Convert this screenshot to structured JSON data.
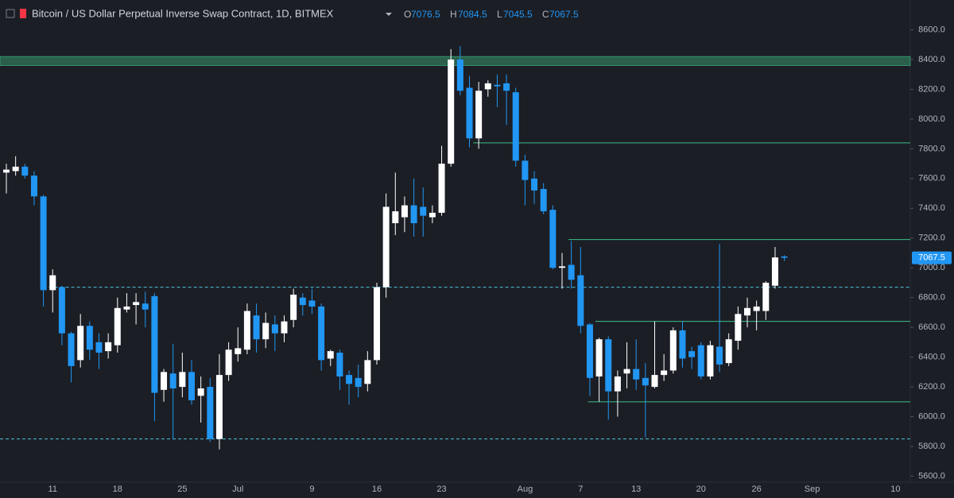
{
  "chart_data": {
    "type": "candlestick",
    "title": "Bitcoin / US Dollar Perpetual Inverse Swap Contract, 1D, BITMEX",
    "ohlc_keys": [
      "O",
      "H",
      "L",
      "C"
    ],
    "up_color": "#ffffff",
    "down_color": "#2196f3",
    "categories": [
      null,
      null,
      null,
      null,
      null,
      "11",
      null,
      null,
      null,
      null,
      null,
      null,
      "18",
      null,
      null,
      null,
      null,
      null,
      null,
      "25",
      null,
      null,
      null,
      null,
      null,
      "Jul",
      null,
      null,
      null,
      null,
      null,
      null,
      null,
      "9",
      null,
      null,
      null,
      null,
      null,
      null,
      "16",
      null,
      null,
      null,
      null,
      null,
      null,
      "23",
      null,
      null,
      null,
      null,
      null,
      null,
      null,
      null,
      "Aug",
      null,
      null,
      null,
      null,
      null,
      "7",
      null,
      null,
      null,
      null,
      null,
      "13",
      null,
      null,
      null,
      null,
      null,
      null,
      "20",
      null,
      null,
      null,
      null,
      null,
      "26",
      null,
      null,
      null,
      null,
      null,
      "Sep",
      null,
      null,
      null,
      null,
      null,
      null,
      null,
      null,
      "10"
    ],
    "open": [
      7640,
      7650,
      7680,
      7620,
      7480,
      6850,
      6870,
      6560,
      6380,
      6610,
      6500,
      6440,
      6480,
      6720,
      6750,
      6760,
      6810,
      6180,
      6290,
      6200,
      6300,
      6140,
      6200,
      5850,
      6280,
      6420,
      6450,
      6680,
      6520,
      6620,
      6560,
      6650,
      6800,
      6780,
      6740,
      6390,
      6430,
      6280,
      6260,
      6220,
      6380,
      6870,
      7300,
      7340,
      7420,
      7410,
      7340,
      7370,
      7700,
      8400,
      8210,
      7870,
      8200,
      8230,
      8240,
      8180,
      7720,
      7600,
      7530,
      7390,
      7000,
      7020,
      6950,
      6620,
      6270,
      6520,
      6170,
      6290,
      6320,
      6260,
      6200,
      6280,
      6310,
      6580,
      6440,
      6480,
      6270,
      6470,
      6360,
      6510,
      6680,
      6710,
      6710,
      6880,
      7076.5,
      null,
      null,
      null,
      null,
      null,
      null,
      null,
      null,
      null,
      null,
      null,
      null
    ],
    "high": [
      7700,
      7750,
      7700,
      7650,
      7490,
      6990,
      6880,
      6570,
      6690,
      6640,
      6560,
      6560,
      6800,
      6830,
      6830,
      6840,
      6830,
      6320,
      6490,
      6430,
      6380,
      6270,
      6260,
      6420,
      6500,
      6600,
      6760,
      6760,
      6700,
      6680,
      6680,
      6860,
      6830,
      6860,
      6760,
      6450,
      6450,
      6310,
      6350,
      6440,
      6900,
      7500,
      7640,
      7480,
      7600,
      7540,
      7420,
      7820,
      8470,
      8490,
      8290,
      8250,
      8260,
      8300,
      8300,
      8210,
      7760,
      7650,
      7570,
      7420,
      7100,
      7180,
      7140,
      6630,
      6530,
      6540,
      6310,
      6500,
      6520,
      6360,
      6640,
      6420,
      6600,
      6640,
      6470,
      6500,
      6510,
      7160,
      6560,
      6740,
      6800,
      6780,
      6910,
      7140,
      7084.5,
      null,
      null,
      null,
      null,
      null,
      null,
      null,
      null,
      null,
      null,
      null,
      null
    ],
    "low": [
      7500,
      7620,
      7600,
      7420,
      6740,
      6700,
      6480,
      6230,
      6330,
      6380,
      6320,
      6390,
      6430,
      6700,
      6620,
      6600,
      5970,
      6100,
      5850,
      6130,
      6080,
      5960,
      5830,
      5780,
      6240,
      6370,
      6420,
      6430,
      6460,
      6440,
      6500,
      6600,
      6680,
      6690,
      6310,
      6340,
      6180,
      6080,
      6130,
      6170,
      6350,
      6800,
      7220,
      7240,
      7210,
      7210,
      7300,
      7350,
      7680,
      8160,
      7810,
      7800,
      8150,
      8080,
      7960,
      7680,
      7420,
      7430,
      7360,
      6990,
      6860,
      6860,
      6560,
      6140,
      6100,
      5980,
      6000,
      6190,
      6180,
      5860,
      6190,
      6240,
      6290,
      6330,
      6320,
      6250,
      6250,
      6300,
      6340,
      6450,
      6600,
      6580,
      6650,
      6860,
      7045.5,
      null,
      null,
      null,
      null,
      null,
      null,
      null,
      null,
      null,
      null,
      null,
      null
    ],
    "close": [
      7660,
      7680,
      7620,
      7480,
      6850,
      6950,
      6560,
      6340,
      6610,
      6450,
      6430,
      6500,
      6730,
      6740,
      6770,
      6720,
      6160,
      6300,
      6190,
      6300,
      6110,
      6190,
      5850,
      6280,
      6450,
      6460,
      6710,
      6520,
      6630,
      6560,
      6640,
      6820,
      6750,
      6740,
      6380,
      6440,
      6270,
      6220,
      6200,
      6380,
      6870,
      7410,
      7380,
      7420,
      7300,
      7350,
      7370,
      7700,
      8400,
      8190,
      7870,
      8190,
      8240,
      8220,
      8190,
      7720,
      7590,
      7520,
      7380,
      7000,
      7010,
      6920,
      6610,
      6260,
      6520,
      6170,
      6270,
      6320,
      6250,
      6210,
      6280,
      6310,
      6580,
      6390,
      6400,
      6270,
      6480,
      6350,
      6520,
      6690,
      6730,
      6740,
      6900,
      7070,
      7067.5,
      null,
      null,
      null,
      null,
      null,
      null,
      null,
      null,
      null,
      null,
      null,
      null
    ],
    "ylim": [
      5560,
      8800
    ],
    "yticks": [
      {
        "value": 5600,
        "label": "5600.0"
      },
      {
        "value": 5800,
        "label": "5800.0"
      },
      {
        "value": 6000,
        "label": "6000.0"
      },
      {
        "value": 6200,
        "label": "6200.0"
      },
      {
        "value": 6400,
        "label": "6400.0"
      },
      {
        "value": 6600,
        "label": "6600.0"
      },
      {
        "value": 6800,
        "label": "6800.0"
      },
      {
        "value": 7000,
        "label": "7000.0"
      },
      {
        "value": 7200,
        "label": "7200.0"
      },
      {
        "value": 7400,
        "label": "7400.0"
      },
      {
        "value": 7600,
        "label": "7600.0"
      },
      {
        "value": 7800,
        "label": "7800.0"
      },
      {
        "value": 8000,
        "label": "8000.0"
      },
      {
        "value": 8200,
        "label": "8200.0"
      },
      {
        "value": 8400,
        "label": "8400.0"
      },
      {
        "value": 8600,
        "label": "8600.0"
      }
    ],
    "zone": {
      "from": 8360,
      "to": 8420,
      "color": "#2e6b52"
    },
    "levels": [
      {
        "value": 7840,
        "color": "#3fbf8a",
        "style": "solid"
      },
      {
        "value": 7190,
        "color": "#3fbf8a",
        "style": "solid"
      },
      {
        "value": 6640,
        "color": "#3fbf8a",
        "style": "solid"
      },
      {
        "value": 6100,
        "color": "#3fbf8a",
        "style": "solid"
      },
      {
        "value": 6870,
        "color": "#4fc3e0",
        "style": "dashed"
      },
      {
        "value": 5850,
        "color": "#4fc3e0",
        "style": "dashed"
      }
    ]
  }
}
